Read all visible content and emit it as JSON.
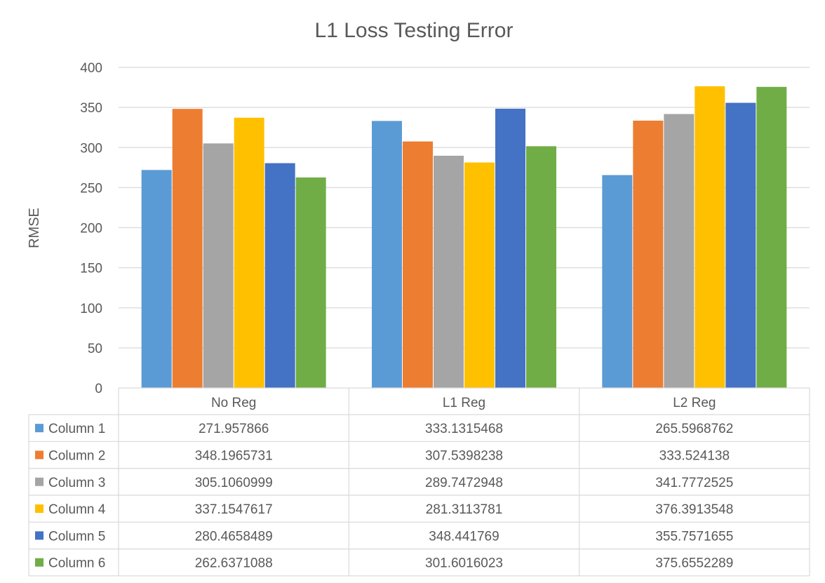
{
  "chart_data": {
    "type": "bar",
    "title": "L1 Loss Testing Error",
    "xlabel": "",
    "ylabel": "RMSE",
    "ylim": [
      0,
      400
    ],
    "yticks": [
      0,
      50,
      100,
      150,
      200,
      250,
      300,
      350,
      400
    ],
    "grid": true,
    "legend": "data-table",
    "categories": [
      "No Reg",
      "L1 Reg",
      "L2 Reg"
    ],
    "series": [
      {
        "name": "Column 1",
        "color": "#5B9BD5",
        "values": [
          271.957866,
          333.1315468,
          265.5968762
        ],
        "labels": [
          "271.957866",
          "333.1315468",
          "265.5968762"
        ]
      },
      {
        "name": "Column 2",
        "color": "#ED7D31",
        "values": [
          348.1965731,
          307.5398238,
          333.524138
        ],
        "labels": [
          "348.1965731",
          "307.5398238",
          "333.524138"
        ]
      },
      {
        "name": "Column 3",
        "color": "#A5A5A5",
        "values": [
          305.1060999,
          289.7472948,
          341.7772525
        ],
        "labels": [
          "305.1060999",
          "289.7472948",
          "341.7772525"
        ]
      },
      {
        "name": "Column 4",
        "color": "#FFC000",
        "values": [
          337.1547617,
          281.3113781,
          376.3913548
        ],
        "labels": [
          "337.1547617",
          "281.3113781",
          "376.3913548"
        ]
      },
      {
        "name": "Column 5",
        "color": "#4472C4",
        "values": [
          280.4658489,
          348.441769,
          355.7571655
        ],
        "labels": [
          "280.4658489",
          "348.441769",
          "355.7571655"
        ]
      },
      {
        "name": "Column 6",
        "color": "#70AD47",
        "values": [
          262.6371088,
          301.6016023,
          375.6552289
        ],
        "labels": [
          "262.6371088",
          "301.6016023",
          "375.6552289"
        ]
      }
    ]
  }
}
